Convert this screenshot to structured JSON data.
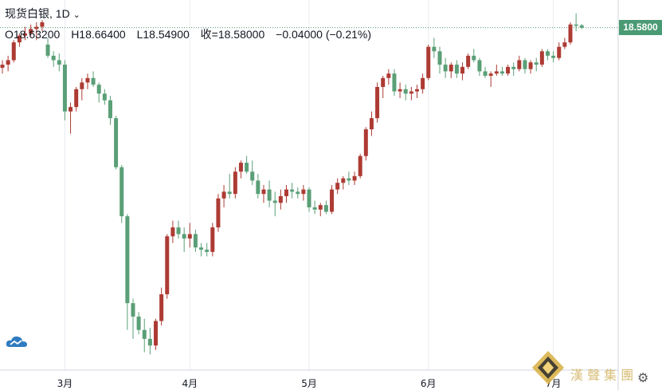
{
  "header": {
    "title": "现货白银, 1D",
    "dropdown_icon": "chevron-down-icon",
    "open": "O18.63200",
    "high": "H18.66400",
    "low": "L18.54900",
    "close": "收=18.58000",
    "change": "−0.04000 (−0.21%)"
  },
  "price_tag": "18.5800",
  "colors": {
    "up": "#ad3b33",
    "down": "#5a9f77",
    "tag": "#4a9a74",
    "grid": "#e8ebef"
  },
  "watermark": {
    "text": "漢 聲 集 團",
    "icon": "diamond-logo-icon"
  },
  "chart_data": {
    "type": "candlestick",
    "title": "现货白银, 1D",
    "xlabel": "",
    "ylabel": "",
    "ylim": [
      10.9,
      19.2
    ],
    "month_ticks": [
      {
        "label": "3月",
        "index": 11
      },
      {
        "label": "4月",
        "index": 33
      },
      {
        "label": "5月",
        "index": 54
      },
      {
        "label": "6月",
        "index": 75
      },
      {
        "label": "7月",
        "index": 97
      }
    ],
    "last_price": 18.58,
    "candles": [
      [
        17.68,
        17.85,
        17.55,
        17.75
      ],
      [
        17.75,
        17.95,
        17.6,
        17.85
      ],
      [
        17.85,
        18.3,
        17.8,
        18.25
      ],
      [
        18.25,
        18.45,
        18.15,
        18.4
      ],
      [
        18.4,
        18.6,
        18.3,
        18.45
      ],
      [
        18.45,
        18.65,
        18.4,
        18.55
      ],
      [
        18.55,
        18.7,
        18.3,
        18.6
      ],
      [
        18.6,
        18.75,
        18.5,
        18.7
      ],
      [
        18.2,
        18.35,
        17.9,
        17.95
      ],
      [
        17.95,
        18.05,
        17.7,
        17.85
      ],
      [
        17.85,
        18.0,
        17.6,
        17.75
      ],
      [
        17.75,
        17.85,
        16.5,
        16.7
      ],
      [
        16.7,
        16.9,
        16.2,
        16.8
      ],
      [
        16.8,
        17.25,
        16.7,
        17.2
      ],
      [
        17.2,
        17.45,
        16.95,
        17.35
      ],
      [
        17.35,
        17.55,
        17.2,
        17.45
      ],
      [
        17.45,
        17.6,
        17.25,
        17.3
      ],
      [
        17.3,
        17.35,
        16.9,
        17.1
      ],
      [
        17.1,
        17.2,
        16.85,
        16.95
      ],
      [
        16.95,
        17.05,
        16.4,
        16.55
      ],
      [
        16.55,
        16.6,
        15.4,
        15.45
      ],
      [
        15.45,
        15.5,
        14.2,
        14.35
      ],
      [
        14.35,
        14.4,
        11.8,
        12.4
      ],
      [
        12.4,
        12.5,
        11.6,
        12.1
      ],
      [
        12.1,
        12.2,
        11.7,
        11.8
      ],
      [
        11.8,
        12.05,
        11.3,
        11.6
      ],
      [
        11.6,
        11.85,
        11.25,
        11.45
      ],
      [
        11.45,
        12.05,
        11.35,
        12.0
      ],
      [
        12.0,
        12.75,
        11.9,
        12.6
      ],
      [
        12.6,
        13.95,
        12.5,
        13.9
      ],
      [
        13.9,
        14.25,
        13.75,
        14.1
      ],
      [
        14.1,
        14.25,
        13.85,
        13.95
      ],
      [
        13.95,
        14.1,
        13.55,
        13.85
      ],
      [
        13.85,
        14.2,
        13.65,
        13.95
      ],
      [
        13.95,
        14.05,
        13.55,
        13.65
      ],
      [
        13.65,
        13.75,
        13.45,
        13.6
      ],
      [
        13.6,
        13.75,
        13.45,
        13.55
      ],
      [
        13.55,
        14.2,
        13.45,
        14.1
      ],
      [
        14.1,
        14.85,
        14.0,
        14.75
      ],
      [
        14.75,
        15.05,
        14.55,
        14.9
      ],
      [
        14.9,
        15.3,
        14.75,
        14.85
      ],
      [
        14.85,
        15.45,
        14.75,
        15.35
      ],
      [
        15.35,
        15.6,
        15.2,
        15.55
      ],
      [
        15.55,
        15.7,
        15.3,
        15.35
      ],
      [
        15.35,
        15.6,
        15.05,
        15.15
      ],
      [
        15.15,
        15.3,
        14.75,
        14.85
      ],
      [
        14.85,
        15.05,
        14.65,
        14.95
      ],
      [
        14.95,
        15.15,
        14.55,
        14.7
      ],
      [
        14.7,
        14.9,
        14.35,
        14.65
      ],
      [
        14.65,
        14.95,
        14.5,
        14.8
      ],
      [
        14.8,
        15.05,
        14.65,
        14.95
      ],
      [
        14.95,
        15.1,
        14.75,
        14.9
      ],
      [
        14.9,
        15.0,
        14.75,
        14.85
      ],
      [
        14.85,
        15.05,
        14.7,
        14.95
      ],
      [
        14.95,
        15.0,
        14.45,
        14.55
      ],
      [
        14.55,
        14.7,
        14.4,
        14.5
      ],
      [
        14.5,
        14.65,
        14.35,
        14.6
      ],
      [
        14.6,
        14.7,
        14.4,
        14.45
      ],
      [
        14.45,
        15.05,
        14.4,
        14.95
      ],
      [
        14.95,
        15.2,
        14.85,
        15.1
      ],
      [
        15.1,
        15.25,
        14.95,
        15.2
      ],
      [
        15.2,
        15.35,
        15.05,
        15.15
      ],
      [
        15.15,
        15.35,
        15.05,
        15.25
      ],
      [
        15.25,
        15.75,
        15.2,
        15.7
      ],
      [
        15.7,
        16.35,
        15.6,
        16.3
      ],
      [
        16.3,
        16.7,
        16.15,
        16.55
      ],
      [
        16.55,
        17.35,
        16.45,
        17.25
      ],
      [
        17.25,
        17.5,
        17.0,
        17.45
      ],
      [
        17.45,
        17.65,
        17.3,
        17.55
      ],
      [
        17.55,
        17.65,
        17.05,
        17.15
      ],
      [
        17.15,
        17.35,
        17.0,
        17.2
      ],
      [
        17.2,
        17.3,
        16.95,
        17.1
      ],
      [
        17.1,
        17.25,
        16.95,
        17.15
      ],
      [
        17.15,
        17.3,
        17.0,
        17.2
      ],
      [
        17.2,
        17.55,
        17.1,
        17.45
      ],
      [
        17.45,
        18.2,
        17.4,
        18.15
      ],
      [
        18.15,
        18.35,
        17.9,
        18.05
      ],
      [
        18.05,
        18.15,
        17.55,
        17.75
      ],
      [
        17.75,
        17.9,
        17.45,
        17.6
      ],
      [
        17.6,
        17.8,
        17.45,
        17.75
      ],
      [
        17.75,
        17.85,
        17.45,
        17.55
      ],
      [
        17.55,
        17.8,
        17.4,
        17.7
      ],
      [
        17.7,
        18.0,
        17.65,
        17.95
      ],
      [
        17.95,
        18.1,
        17.8,
        17.85
      ],
      [
        17.85,
        17.9,
        17.5,
        17.6
      ],
      [
        17.6,
        17.7,
        17.45,
        17.5
      ],
      [
        17.5,
        17.6,
        17.25,
        17.55
      ],
      [
        17.55,
        17.75,
        17.5,
        17.6
      ],
      [
        17.6,
        17.7,
        17.5,
        17.55
      ],
      [
        17.55,
        17.75,
        17.5,
        17.7
      ],
      [
        17.7,
        17.8,
        17.5,
        17.65
      ],
      [
        17.65,
        17.95,
        17.6,
        17.85
      ],
      [
        17.85,
        17.9,
        17.55,
        17.65
      ],
      [
        17.65,
        17.85,
        17.55,
        17.8
      ],
      [
        17.8,
        17.9,
        17.6,
        17.75
      ],
      [
        17.75,
        18.1,
        17.7,
        18.05
      ],
      [
        18.05,
        18.1,
        17.85,
        17.95
      ],
      [
        17.95,
        18.05,
        17.8,
        17.9
      ],
      [
        17.9,
        18.25,
        17.85,
        18.15
      ],
      [
        18.15,
        18.35,
        18.1,
        18.25
      ],
      [
        18.25,
        18.7,
        18.2,
        18.65
      ],
      [
        18.65,
        18.9,
        18.5,
        18.62
      ],
      [
        18.632,
        18.664,
        18.549,
        18.58
      ]
    ]
  }
}
